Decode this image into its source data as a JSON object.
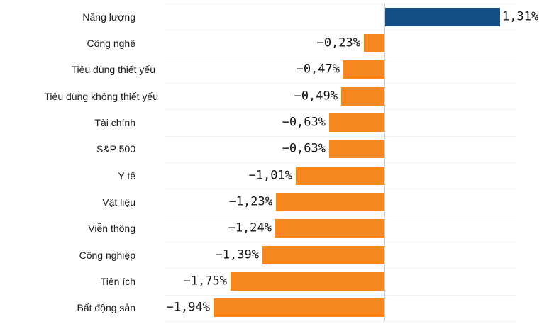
{
  "chart_data": {
    "type": "bar",
    "orientation": "horizontal",
    "categories": [
      "Năng lượng",
      "Công nghệ",
      "Tiêu dùng thiết yếu",
      "Tiêu dùng không thiết yếu",
      "Tài chính",
      "S&P 500",
      "Y tế",
      "Vật liệu",
      "Viễn thông",
      "Công nghiệp",
      "Tiện ích",
      "Bất động sản"
    ],
    "values": [
      1.31,
      -0.23,
      -0.47,
      -0.49,
      -0.63,
      -0.63,
      -1.01,
      -1.23,
      -1.24,
      -1.39,
      -1.75,
      -1.94
    ],
    "value_labels": [
      "1,31%",
      "−0,23%",
      "−0,47%",
      "−0,49%",
      "−0,63%",
      "−0,63%",
      "−1,01%",
      "−1,23%",
      "−1,24%",
      "−1,39%",
      "−1,75%",
      "−1,94%"
    ],
    "unit": "%",
    "decimal_separator": ",",
    "xlim": [
      -2.5,
      1.5
    ],
    "grid": "horizontal row separators, no axis tick labels",
    "legend": "none",
    "colors": {
      "positive_bar": "#134E85",
      "negative_bar": "#F6871F",
      "gridline": "#F2F2F2",
      "zero_line": "#C9CED3",
      "text": "#1A1A1A",
      "value_text": "#141414",
      "background": "#FFFFFF"
    }
  }
}
